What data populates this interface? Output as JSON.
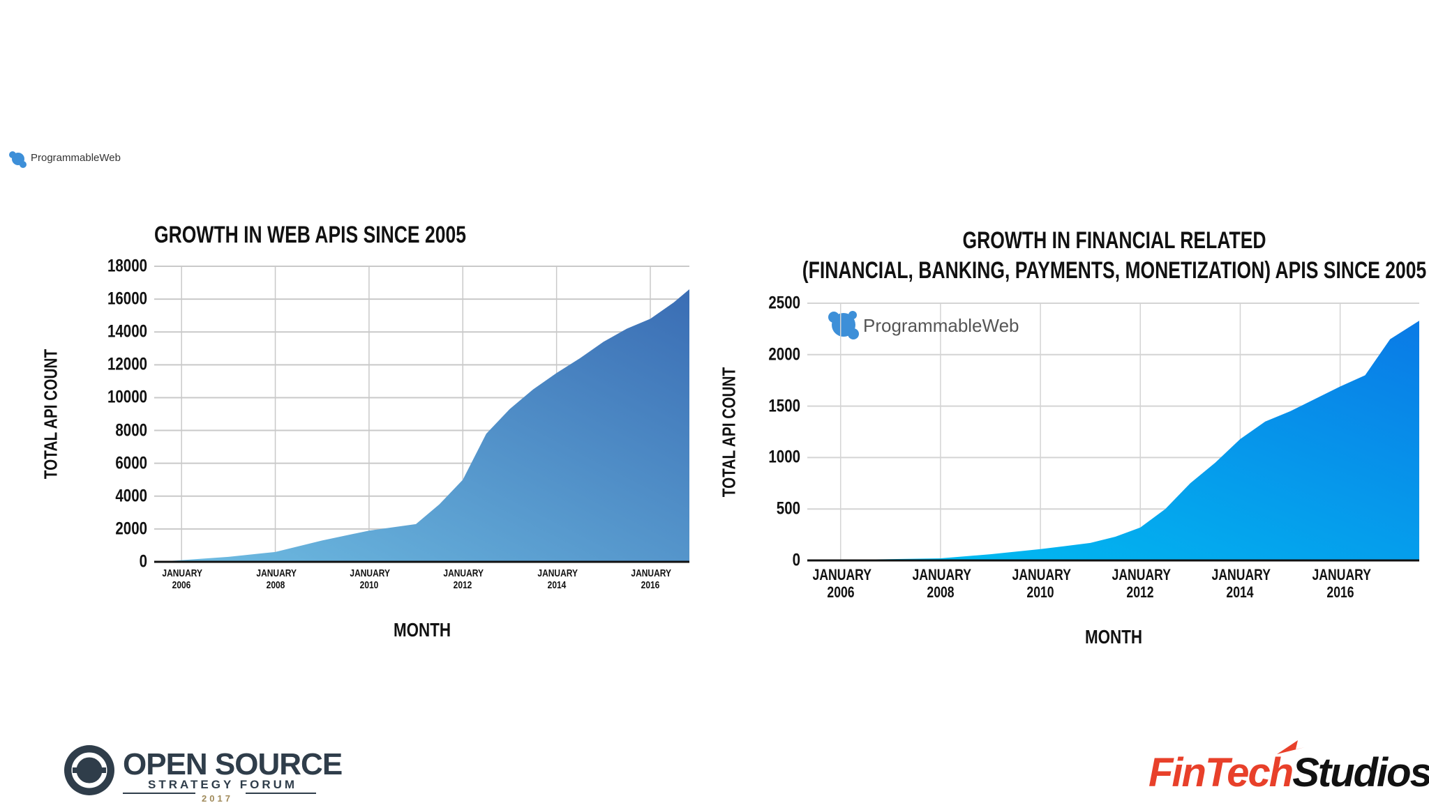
{
  "chart_data": [
    {
      "type": "area",
      "title": "GROWTH IN WEB APIS SINCE 2005",
      "x_label": "MONTH",
      "y_label": "TOTAL API COUNT",
      "x": [
        "2005-06",
        "2006-01",
        "2007-01",
        "2008-01",
        "2009-01",
        "2010-01",
        "2011-01",
        "2011-07",
        "2012-01",
        "2012-07",
        "2013-01",
        "2013-07",
        "2014-01",
        "2014-07",
        "2015-01",
        "2015-07",
        "2016-01",
        "2016-07",
        "2016-11"
      ],
      "values": [
        0,
        100,
        300,
        600,
        1300,
        1900,
        2300,
        3500,
        5000,
        7800,
        9300,
        10500,
        11500,
        12400,
        13400,
        14200,
        14800,
        15800,
        16600
      ],
      "gradient": [
        "#6fbde2",
        "#3a6db4"
      ],
      "xlim": [
        "2005-06",
        "2016-11"
      ],
      "xticks": [
        {
          "value": "2006-01",
          "label": "JANUARY 2006"
        },
        {
          "value": "2008-01",
          "label": "JANUARY 2008"
        },
        {
          "value": "2010-01",
          "label": "JANUARY 2010"
        },
        {
          "value": "2012-01",
          "label": "JANUARY 2012"
        },
        {
          "value": "2014-01",
          "label": "JANUARY 2014"
        },
        {
          "value": "2016-01",
          "label": "JANUARY 2016"
        }
      ],
      "ylim": [
        0,
        18000
      ],
      "yticks": [
        0,
        2000,
        4000,
        6000,
        8000,
        10000,
        12000,
        14000,
        16000,
        18000
      ],
      "grid": true
    },
    {
      "type": "area",
      "title": "GROWTH IN FINANCIAL RELATED",
      "subtitle": "(FINANCIAL, BANKING, PAYMENTS, MONETIZATION) APIS SINCE 2005",
      "x_label": "MONTH",
      "y_label": "TOTAL API COUNT",
      "x": [
        "2005-05",
        "2006-01",
        "2008-01",
        "2009-01",
        "2010-01",
        "2011-01",
        "2011-07",
        "2012-01",
        "2012-07",
        "2013-01",
        "2013-07",
        "2014-01",
        "2014-07",
        "2015-01",
        "2015-07",
        "2016-01",
        "2016-07",
        "2017-01",
        "2017-08"
      ],
      "values": [
        0,
        5,
        20,
        60,
        110,
        170,
        230,
        320,
        500,
        750,
        950,
        1180,
        1350,
        1450,
        1570,
        1690,
        1800,
        2150,
        2330
      ],
      "gradient": [
        "#00c2f2",
        "#0a7ae6"
      ],
      "xlim": [
        "2005-05",
        "2017-08"
      ],
      "xticks": [
        {
          "value": "2006-01",
          "label": "JANUARY 2006"
        },
        {
          "value": "2008-01",
          "label": "JANUARY 2008"
        },
        {
          "value": "2010-01",
          "label": "JANUARY 2010"
        },
        {
          "value": "2012-01",
          "label": "JANUARY 2012"
        },
        {
          "value": "2014-01",
          "label": "JANUARY 2014"
        },
        {
          "value": "2016-01",
          "label": "JANUARY 2016"
        }
      ],
      "ylim": [
        0,
        2500
      ],
      "yticks": [
        0,
        500,
        1000,
        1500,
        2000,
        2500
      ],
      "grid": true
    }
  ],
  "watermark": "ProgrammableWeb",
  "footer": {
    "left": {
      "title": "OPEN SOURCE",
      "subtitle": "STRATEGY FORUM",
      "year": "2017"
    },
    "right": [
      "FinTech",
      "Studios"
    ]
  }
}
